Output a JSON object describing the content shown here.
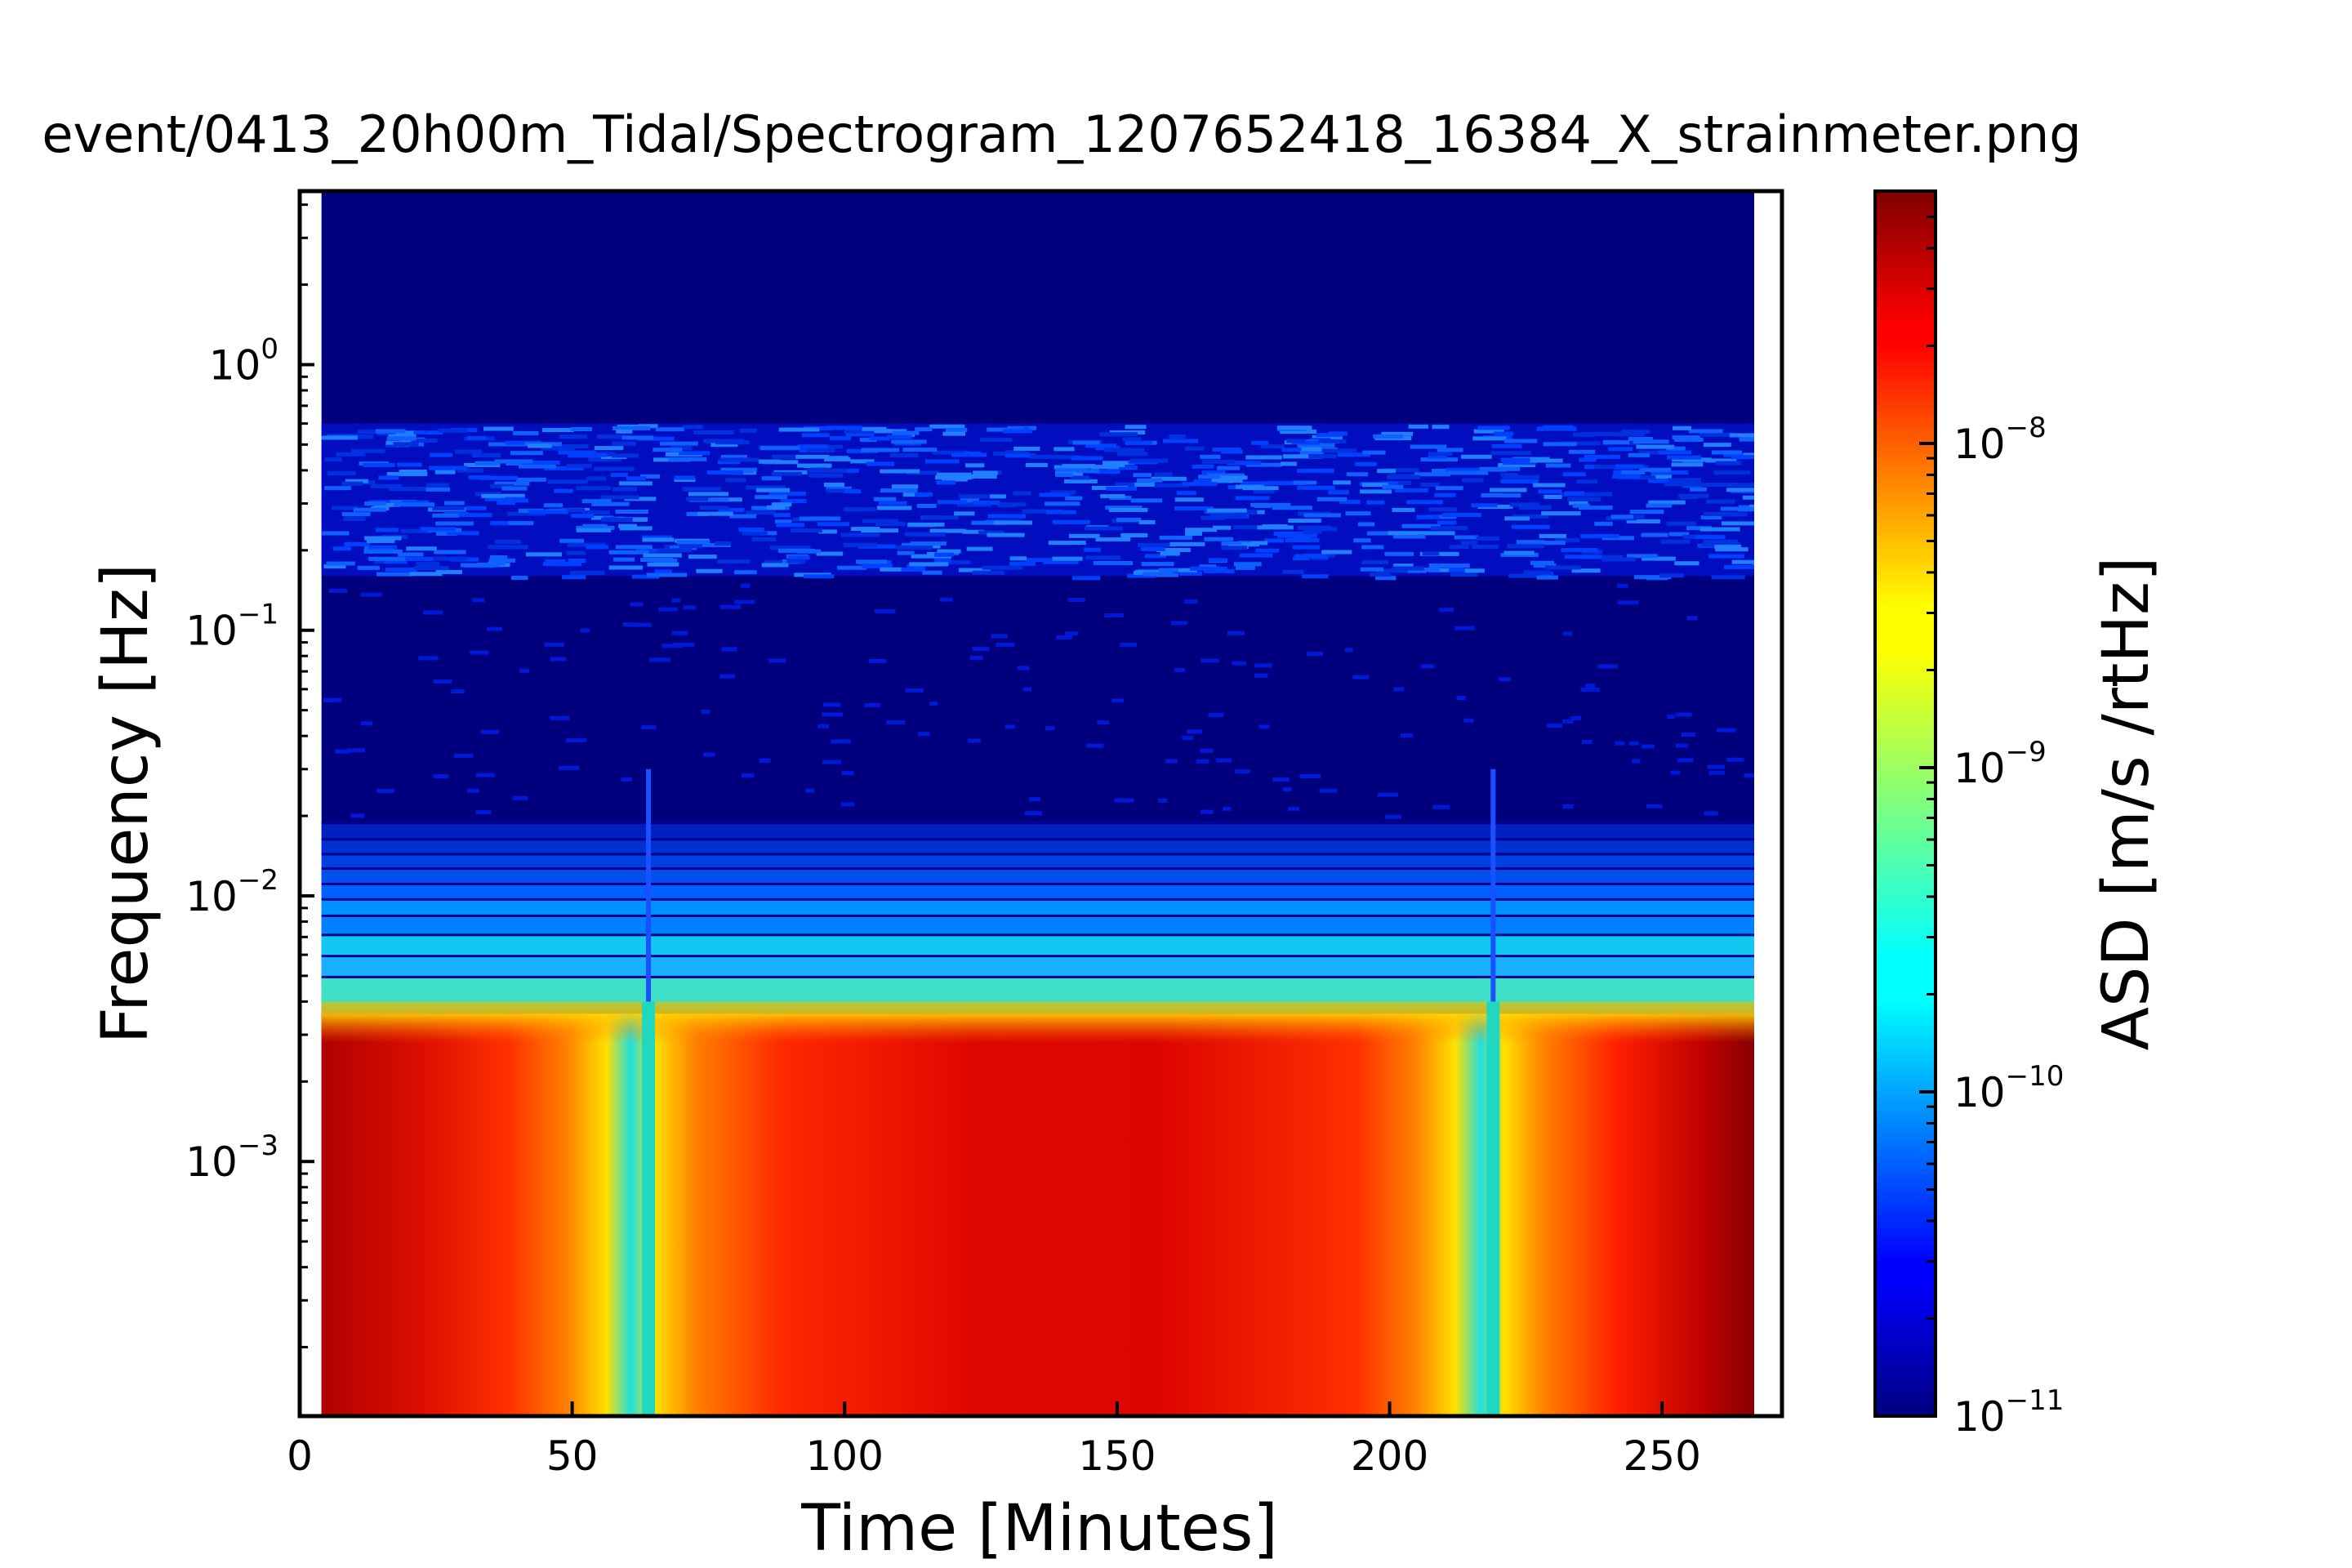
{
  "chart_data": {
    "type": "heatmap",
    "title": "event/0413_20h00m_Tidal/Spectrogram_1207652418_16384_X_strainmeter.png",
    "xlabel": "Time [Minutes]",
    "ylabel": "Frequency [Hz]",
    "colorbar_label": "ASD [m/s /rtHz]",
    "xlim": [
      0,
      272
    ],
    "ylim": [
      0.00011,
      0.0045
    ],
    "y_scale": "log",
    "data_time_range": [
      4,
      268
    ],
    "xticks": [
      0,
      50,
      100,
      150,
      200,
      250
    ],
    "xtick_labels": [
      "0",
      "50",
      "100",
      "150",
      "200",
      "250"
    ],
    "yticks": [
      0.001,
      0.01,
      0.1,
      1
    ],
    "ytick_labels": [
      {
        "base": "10",
        "exp": "−3"
      },
      {
        "base": "10",
        "exp": "−2"
      },
      {
        "base": "10",
        "exp": "−1"
      },
      {
        "base": "10",
        "exp": "0"
      }
    ],
    "colorbar_scale": "log",
    "colorbar_range": [
      1e-11,
      6e-08
    ],
    "colorbar_ticks": [
      1e-11,
      1e-10,
      1e-09,
      1e-08
    ],
    "colorbar_tick_labels": [
      {
        "base": "10",
        "exp": "−11"
      },
      {
        "base": "10",
        "exp": "−10"
      },
      {
        "base": "10",
        "exp": "−9"
      },
      {
        "base": "10",
        "exp": "−8"
      }
    ],
    "colormap": "jet",
    "notch_times": [
      64,
      219
    ],
    "grid": false
  }
}
